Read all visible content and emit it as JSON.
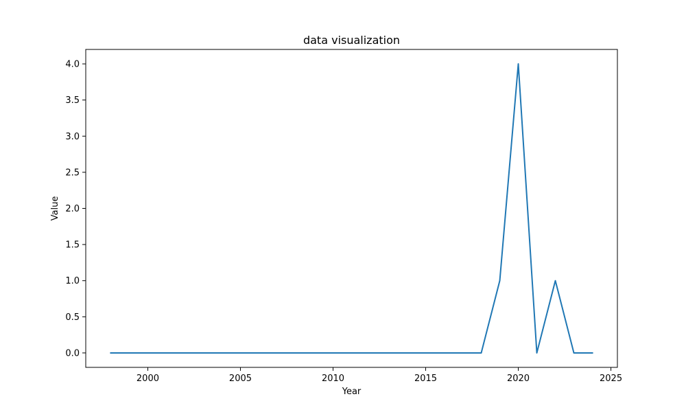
{
  "chart_data": {
    "type": "line",
    "title": "data visualization",
    "xlabel": "Year",
    "ylabel": "Value",
    "xlim": [
      1996.65,
      2025.35
    ],
    "ylim": [
      -0.2,
      4.2
    ],
    "xticks": [
      2000,
      2005,
      2010,
      2015,
      2020,
      2025
    ],
    "yticks": [
      0.0,
      0.5,
      1.0,
      1.5,
      2.0,
      2.5,
      3.0,
      3.5,
      4.0
    ],
    "ytick_labels": [
      "0.0",
      "0.5",
      "1.0",
      "1.5",
      "2.0",
      "2.5",
      "3.0",
      "3.5",
      "4.0"
    ],
    "grid": false,
    "series": [
      {
        "color": "#1f77b4",
        "x": [
          1998,
          1999,
          2000,
          2001,
          2002,
          2003,
          2004,
          2005,
          2006,
          2007,
          2008,
          2009,
          2010,
          2011,
          2012,
          2013,
          2014,
          2015,
          2016,
          2017,
          2018,
          2019,
          2020,
          2021,
          2022,
          2023,
          2024
        ],
        "y": [
          0,
          0,
          0,
          0,
          0,
          0,
          0,
          0,
          0,
          0,
          0,
          0,
          0,
          0,
          0,
          0,
          0,
          0,
          0,
          0,
          0,
          1,
          4,
          0,
          1,
          0,
          0
        ]
      }
    ]
  }
}
